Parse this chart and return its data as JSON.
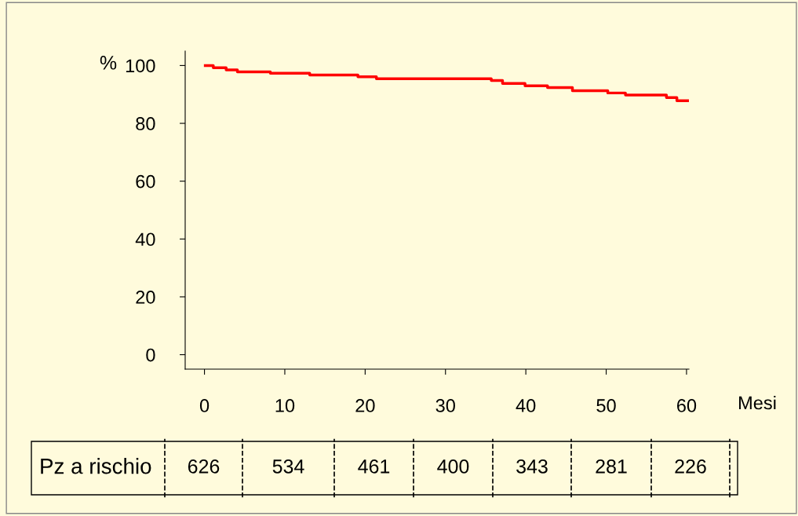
{
  "chart_data": {
    "type": "step",
    "ylabel": "%",
    "xlabel": "Mesi",
    "x": [
      0.1,
      1.1,
      2.7,
      4.1,
      8.2,
      13.1,
      19.1,
      21.4,
      35.7,
      37.1,
      39.9,
      42.7,
      45.8,
      50.2,
      52.4,
      57.5,
      58.8,
      60.3
    ],
    "series": [
      {
        "color": "#ff0000",
        "values": [
          100,
          99.2,
          98.5,
          97.8,
          97.3,
          96.7,
          96.1,
          95.4,
          94.8,
          93.8,
          93,
          92.4,
          91.3,
          90.5,
          89.8,
          88.9,
          87.8,
          87.8
        ]
      }
    ],
    "xlim": [
      -2.4,
      60.3
    ],
    "ylim": [
      -5,
      105
    ],
    "xticks": [
      0,
      10,
      20,
      30,
      40,
      50,
      60
    ],
    "yticks": [
      0,
      20,
      40,
      60,
      80,
      100
    ],
    "grid": false,
    "legend": false,
    "annotations": [
      "Pz a rischio",
      "626",
      "534",
      "461",
      "400",
      "343",
      "281",
      "226"
    ]
  }
}
